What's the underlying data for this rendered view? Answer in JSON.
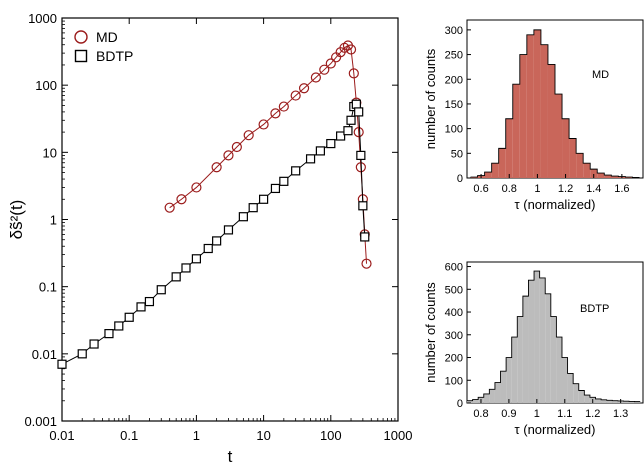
{
  "colors": {
    "md": "#9b1c1c",
    "md_fill": "#c9665a",
    "bdtp": "#000000",
    "bdtp_fill": "#bcbcbc",
    "axis": "#000000"
  },
  "chart_data": [
    {
      "id": "msd",
      "type": "scatter",
      "xscale": "log",
      "yscale": "log",
      "xlabel": "t",
      "ylabel": "δs̃²(t)",
      "xlim": [
        0.01,
        1000
      ],
      "ylim": [
        0.001,
        1000
      ],
      "xticks": [
        "0.01",
        "0.1",
        "1",
        "10",
        "100",
        "1000"
      ],
      "yticks": [
        "0.001",
        "0.01",
        "0.1",
        "1",
        "10",
        "100",
        "1000"
      ],
      "legend": [
        "MD",
        "BDTP"
      ],
      "legend_position": "top-left",
      "series": [
        {
          "name": "MD",
          "marker": "circle",
          "color": "#9b1c1c",
          "x": [
            0.4,
            0.6,
            1,
            2,
            3,
            4,
            6,
            10,
            15,
            20,
            30,
            40,
            60,
            80,
            100,
            120,
            140,
            160,
            180,
            200,
            220,
            240,
            260,
            280,
            300,
            320,
            340
          ],
          "y": [
            1.5,
            2.0,
            3.0,
            6.0,
            9.0,
            12.0,
            18.0,
            26.0,
            38.0,
            48.0,
            70.0,
            90.0,
            130.0,
            170.0,
            210.0,
            260.0,
            310.0,
            360.0,
            390.0,
            340.0,
            150.0,
            55.0,
            20.0,
            6.0,
            2.0,
            0.6,
            0.22
          ],
          "note_x_low_region": [
            0.01,
            0.3
          ]
        },
        {
          "name": "BDTP",
          "marker": "square",
          "color": "#000000",
          "x": [
            0.01,
            0.02,
            0.03,
            0.05,
            0.07,
            0.1,
            0.15,
            0.2,
            0.3,
            0.5,
            0.7,
            1,
            1.5,
            2,
            3,
            5,
            7,
            10,
            15,
            20,
            30,
            50,
            70,
            100,
            140,
            180,
            200,
            220,
            240,
            260,
            280,
            300,
            320
          ],
          "y": [
            0.007,
            0.01,
            0.014,
            0.02,
            0.026,
            0.035,
            0.05,
            0.06,
            0.09,
            0.14,
            0.19,
            0.26,
            0.37,
            0.48,
            0.7,
            1.1,
            1.5,
            2.0,
            2.9,
            3.7,
            5.3,
            8.0,
            10.5,
            13.5,
            17.5,
            21.0,
            30.0,
            48.0,
            52.0,
            40.0,
            9.0,
            1.6,
            0.55
          ]
        }
      ]
    },
    {
      "id": "hist-md",
      "type": "bar",
      "xlabel": "τ (normalized)",
      "ylabel": "number of counts",
      "annotation": "MD",
      "xlim": [
        0.5,
        1.75
      ],
      "ylim": [
        0,
        320
      ],
      "xticks": [
        "0.6",
        "0.8",
        "1",
        "1.2",
        "1.4",
        "1.6"
      ],
      "yticks": [
        "0",
        "50",
        "100",
        "150",
        "200",
        "250",
        "300"
      ],
      "bin_centers": [
        0.55,
        0.6,
        0.65,
        0.7,
        0.75,
        0.8,
        0.85,
        0.9,
        0.95,
        1.0,
        1.05,
        1.1,
        1.15,
        1.2,
        1.25,
        1.3,
        1.35,
        1.4,
        1.45,
        1.5,
        1.55,
        1.6,
        1.65,
        1.7
      ],
      "values": [
        2,
        5,
        12,
        30,
        60,
        120,
        190,
        250,
        290,
        300,
        270,
        230,
        170,
        120,
        80,
        50,
        30,
        18,
        10,
        6,
        4,
        3,
        2,
        1
      ]
    },
    {
      "id": "hist-bdtp",
      "type": "bar",
      "xlabel": "τ (normalized)",
      "ylabel": "number of counts",
      "annotation": "BDTP",
      "xlim": [
        0.75,
        1.38
      ],
      "ylim": [
        0,
        620
      ],
      "xticks": [
        "0.8",
        "0.9",
        "1",
        "1.1",
        "1.2",
        "1.3"
      ],
      "yticks": [
        "0",
        "100",
        "200",
        "300",
        "400",
        "500",
        "600"
      ],
      "bin_centers": [
        0.76,
        0.78,
        0.8,
        0.82,
        0.84,
        0.86,
        0.88,
        0.9,
        0.92,
        0.94,
        0.96,
        0.98,
        1.0,
        1.02,
        1.04,
        1.06,
        1.08,
        1.1,
        1.12,
        1.14,
        1.16,
        1.18,
        1.2,
        1.22,
        1.24,
        1.26,
        1.28,
        1.3,
        1.32,
        1.34,
        1.36
      ],
      "values": [
        10,
        15,
        25,
        40,
        60,
        90,
        140,
        200,
        290,
        380,
        470,
        540,
        580,
        550,
        480,
        380,
        290,
        200,
        130,
        85,
        55,
        35,
        25,
        18,
        14,
        12,
        10,
        9,
        8,
        7,
        6
      ]
    }
  ]
}
